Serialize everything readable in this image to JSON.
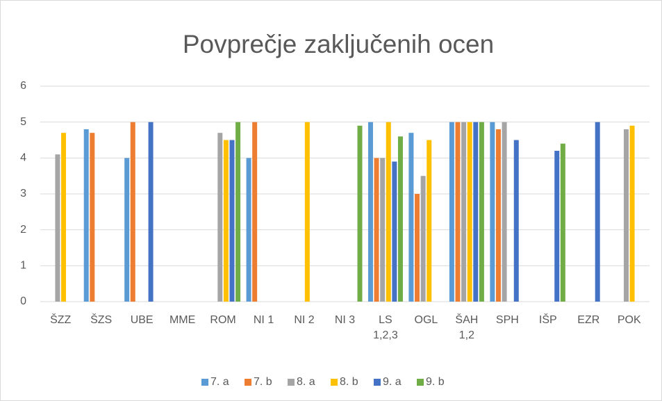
{
  "chart_data": {
    "type": "bar",
    "title": "Povprečje zaključenih ocen",
    "categories": [
      "ŠZZ",
      "ŠZS",
      "UBE",
      "MME",
      "ROM",
      "NI 1",
      "NI 2",
      "NI 3",
      "LS 1,2,3",
      "OGL",
      "ŠAH 1,2",
      "SPH",
      "IŠP",
      "EZR",
      "POK"
    ],
    "series": [
      {
        "name": "7. a",
        "color": "#5b9bd5",
        "values": [
          null,
          4.8,
          4,
          null,
          null,
          4,
          null,
          null,
          5,
          4.7,
          5,
          5,
          null,
          null,
          null
        ]
      },
      {
        "name": "7. b",
        "color": "#ed7d31",
        "values": [
          null,
          4.7,
          5,
          null,
          null,
          5,
          null,
          null,
          4,
          3,
          5,
          4.8,
          null,
          null,
          null
        ]
      },
      {
        "name": "8. a",
        "color": "#a5a5a5",
        "values": [
          4.1,
          null,
          null,
          null,
          4.7,
          null,
          null,
          null,
          4,
          3.5,
          5,
          5,
          null,
          null,
          4.8
        ]
      },
      {
        "name": "8. b",
        "color": "#ffc000",
        "values": [
          4.7,
          null,
          null,
          null,
          4.5,
          null,
          5,
          null,
          5,
          4.5,
          5,
          null,
          null,
          null,
          4.9
        ]
      },
      {
        "name": "9. a",
        "color": "#4472c4",
        "values": [
          null,
          null,
          5,
          null,
          4.5,
          null,
          null,
          null,
          3.9,
          null,
          5,
          4.5,
          4.2,
          5,
          null
        ]
      },
      {
        "name": "9. b",
        "color": "#70ad47",
        "values": [
          null,
          null,
          null,
          null,
          5,
          null,
          null,
          4.9,
          4.6,
          null,
          5,
          null,
          4.4,
          null,
          null
        ]
      }
    ],
    "ylim": [
      0,
      6
    ],
    "yticks": [
      0,
      1,
      2,
      3,
      4,
      5,
      6
    ],
    "grid": true,
    "legend": "bottom"
  }
}
